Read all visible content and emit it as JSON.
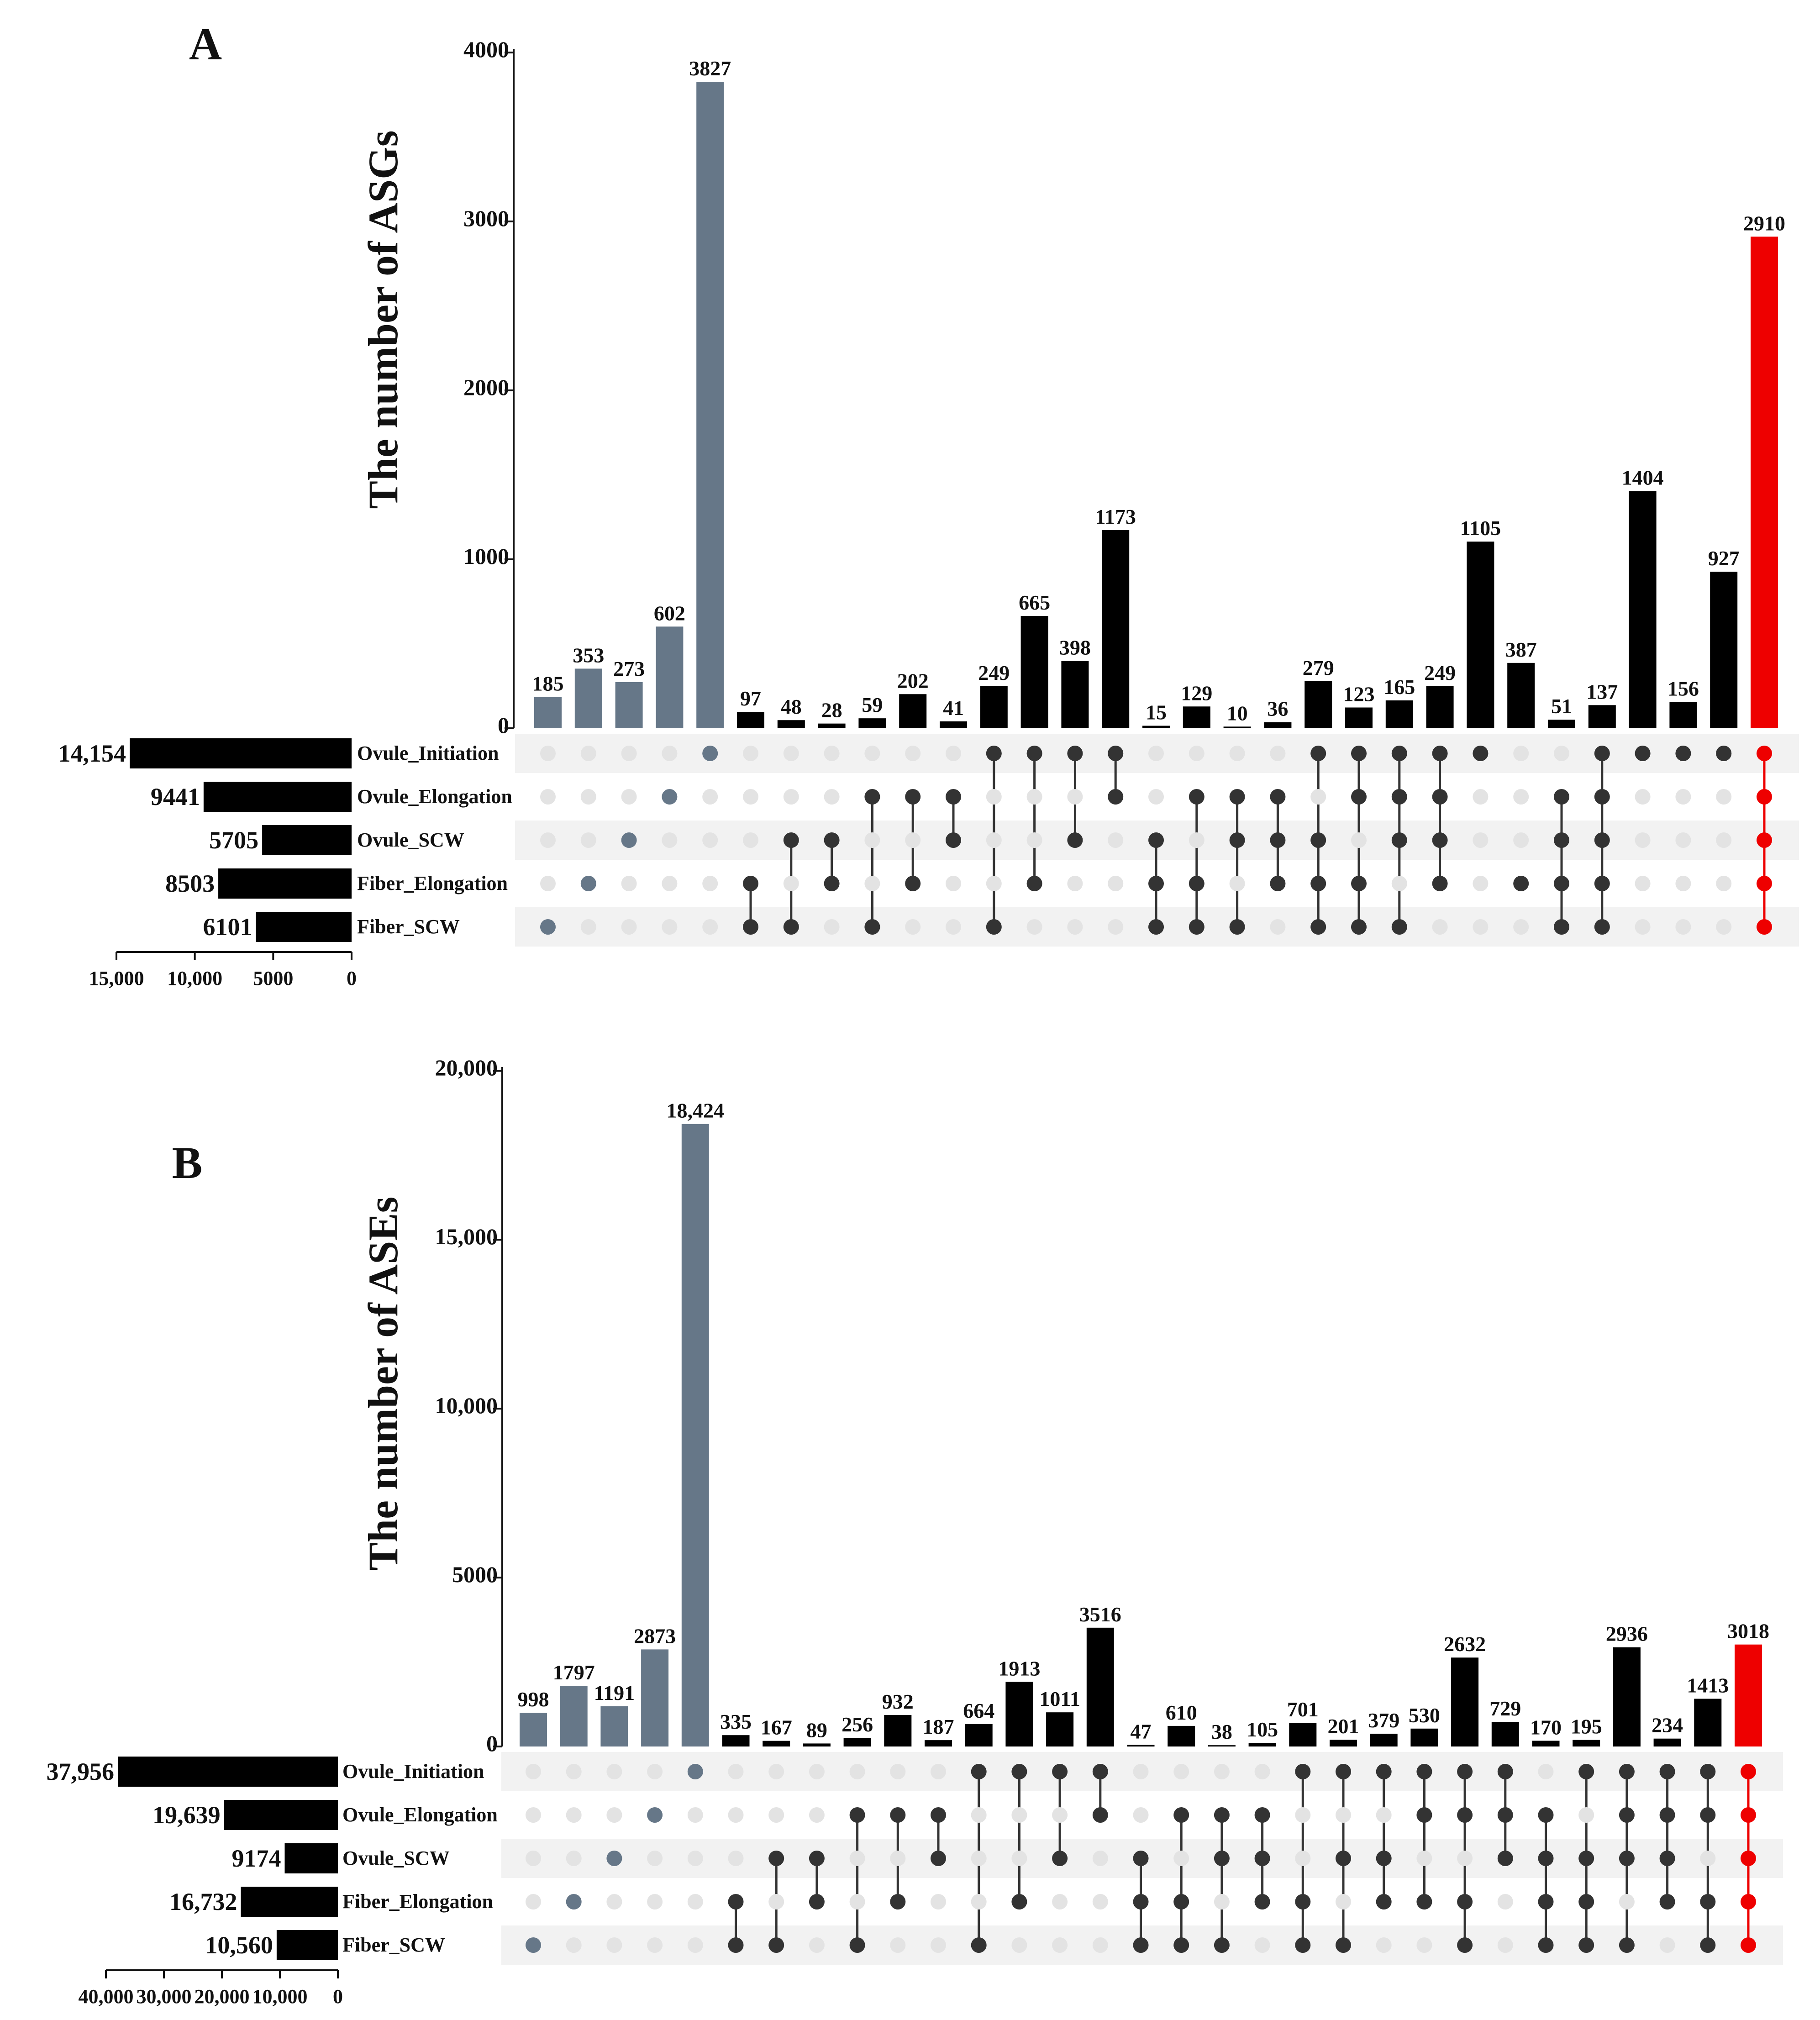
{
  "chart_data": [
    {
      "panel": "A",
      "type": "bar",
      "subtype": "upset",
      "ylabel": "The number of ASGs",
      "ylim": [
        0,
        4000
      ],
      "yticks": [
        0,
        1000,
        2000,
        3000,
        4000
      ],
      "ytick_labels": [
        "0",
        "1000",
        "2000",
        "3000",
        "4000"
      ],
      "sets": [
        "Ovule_Initiation",
        "Ovule_Elongation",
        "Ovule_SCW",
        "Fiber_Elongation",
        "Fiber_SCW"
      ],
      "set_sizes": [
        14154,
        9441,
        5705,
        8503,
        6101
      ],
      "set_size_labels": [
        "14,154",
        "9441",
        "5705",
        "8503",
        "6101"
      ],
      "set_size_xlim": [
        0,
        15000
      ],
      "set_size_ticks": [
        15000,
        10000,
        5000,
        0
      ],
      "set_size_tick_labels": [
        "15,000",
        "10,000",
        "5000",
        "0"
      ],
      "values": [
        185,
        353,
        273,
        602,
        3827,
        97,
        48,
        28,
        59,
        202,
        41,
        249,
        665,
        398,
        1173,
        15,
        129,
        10,
        36,
        279,
        123,
        165,
        249,
        1105,
        387,
        51,
        137,
        1404,
        156,
        927,
        2910
      ],
      "value_labels": [
        "185",
        "353",
        "273",
        "602",
        "3827",
        "97",
        "48",
        "28",
        "59",
        "202",
        "41",
        "249",
        "665",
        "398",
        "1173",
        "15",
        "129",
        "10",
        "36",
        "279",
        "123",
        "165",
        "249",
        "1105",
        "387",
        "51",
        "137",
        "1404",
        "156",
        "927",
        "2910"
      ],
      "combinations": [
        "4",
        "3",
        "2",
        "1",
        "0",
        "34",
        "24",
        "23",
        "14",
        "13",
        "12",
        "04",
        "03",
        "02",
        "01",
        "234",
        "134",
        "124",
        "123",
        "0234",
        "0134",
        "0124",
        "0123",
        "0",
        "3",
        "1234",
        "01234",
        "0",
        "0",
        "0",
        "01234"
      ],
      "bar_colors": [
        "#667788",
        "#667788",
        "#667788",
        "#667788",
        "#667788",
        "#000000",
        "#000000",
        "#000000",
        "#000000",
        "#000000",
        "#000000",
        "#000000",
        "#000000",
        "#000000",
        "#000000",
        "#000000",
        "#000000",
        "#000000",
        "#000000",
        "#000000",
        "#000000",
        "#000000",
        "#000000",
        "#000000",
        "#000000",
        "#000000",
        "#000000",
        "#000000",
        "#000000",
        "#000000",
        "#ee0000"
      ]
    },
    {
      "panel": "B",
      "type": "bar",
      "subtype": "upset",
      "ylabel": "The number of ASEs",
      "ylim": [
        0,
        20000
      ],
      "yticks": [
        0,
        5000,
        10000,
        15000,
        20000
      ],
      "ytick_labels": [
        "0",
        "5000",
        "10,000",
        "15,000",
        "20,000"
      ],
      "sets": [
        "Ovule_Initiation",
        "Ovule_Elongation",
        "Ovule_SCW",
        "Fiber_Elongation",
        "Fiber_SCW"
      ],
      "set_sizes": [
        37956,
        19639,
        9174,
        16732,
        10560
      ],
      "set_size_labels": [
        "37,956",
        "19,639",
        "9174",
        "16,732",
        "10,560"
      ],
      "set_size_xlim": [
        0,
        40000
      ],
      "set_size_ticks": [
        40000,
        30000,
        20000,
        10000,
        0
      ],
      "set_size_tick_labels": [
        "40,000",
        "30,000",
        "20,000",
        "10,000",
        "0"
      ],
      "values": [
        998,
        1797,
        1191,
        2873,
        18424,
        335,
        167,
        89,
        256,
        932,
        187,
        664,
        1913,
        1011,
        3516,
        47,
        610,
        38,
        105,
        701,
        201,
        379,
        530,
        2632,
        729,
        170,
        195,
        2936,
        234,
        1413,
        3018
      ],
      "value_labels": [
        "998",
        "1797",
        "1191",
        "2873",
        "18,424",
        "335",
        "167",
        "89",
        "256",
        "932",
        "187",
        "664",
        "1913",
        "1011",
        "3516",
        "47",
        "610",
        "38",
        "105",
        "701",
        "201",
        "379",
        "530",
        "2632",
        "729",
        "170",
        "195",
        "2936",
        "234",
        "1413",
        "3018"
      ],
      "combinations": [
        "4",
        "3",
        "2",
        "1",
        "0",
        "34",
        "24",
        "23",
        "14",
        "13",
        "12",
        "04",
        "03",
        "02",
        "01",
        "234",
        "134",
        "124",
        "123",
        "034",
        "024",
        "023",
        "013",
        "0134",
        "012",
        "1234",
        "0234",
        "0124",
        "0123",
        "0134",
        "01234"
      ],
      "bar_colors": [
        "#667788",
        "#667788",
        "#667788",
        "#667788",
        "#667788",
        "#000000",
        "#000000",
        "#000000",
        "#000000",
        "#000000",
        "#000000",
        "#000000",
        "#000000",
        "#000000",
        "#000000",
        "#000000",
        "#000000",
        "#000000",
        "#000000",
        "#000000",
        "#000000",
        "#000000",
        "#000000",
        "#000000",
        "#000000",
        "#000000",
        "#000000",
        "#000000",
        "#000000",
        "#000000",
        "#ee0000"
      ]
    }
  ],
  "panel_labels": [
    "A",
    "B"
  ],
  "colors": {
    "single_set": "#667788",
    "multi_set": "#000000",
    "all_sets": "#ee0000",
    "dot_inactive": "#e3e3e3",
    "dot_active": "#333333",
    "stripe": "#f2f2f2"
  }
}
